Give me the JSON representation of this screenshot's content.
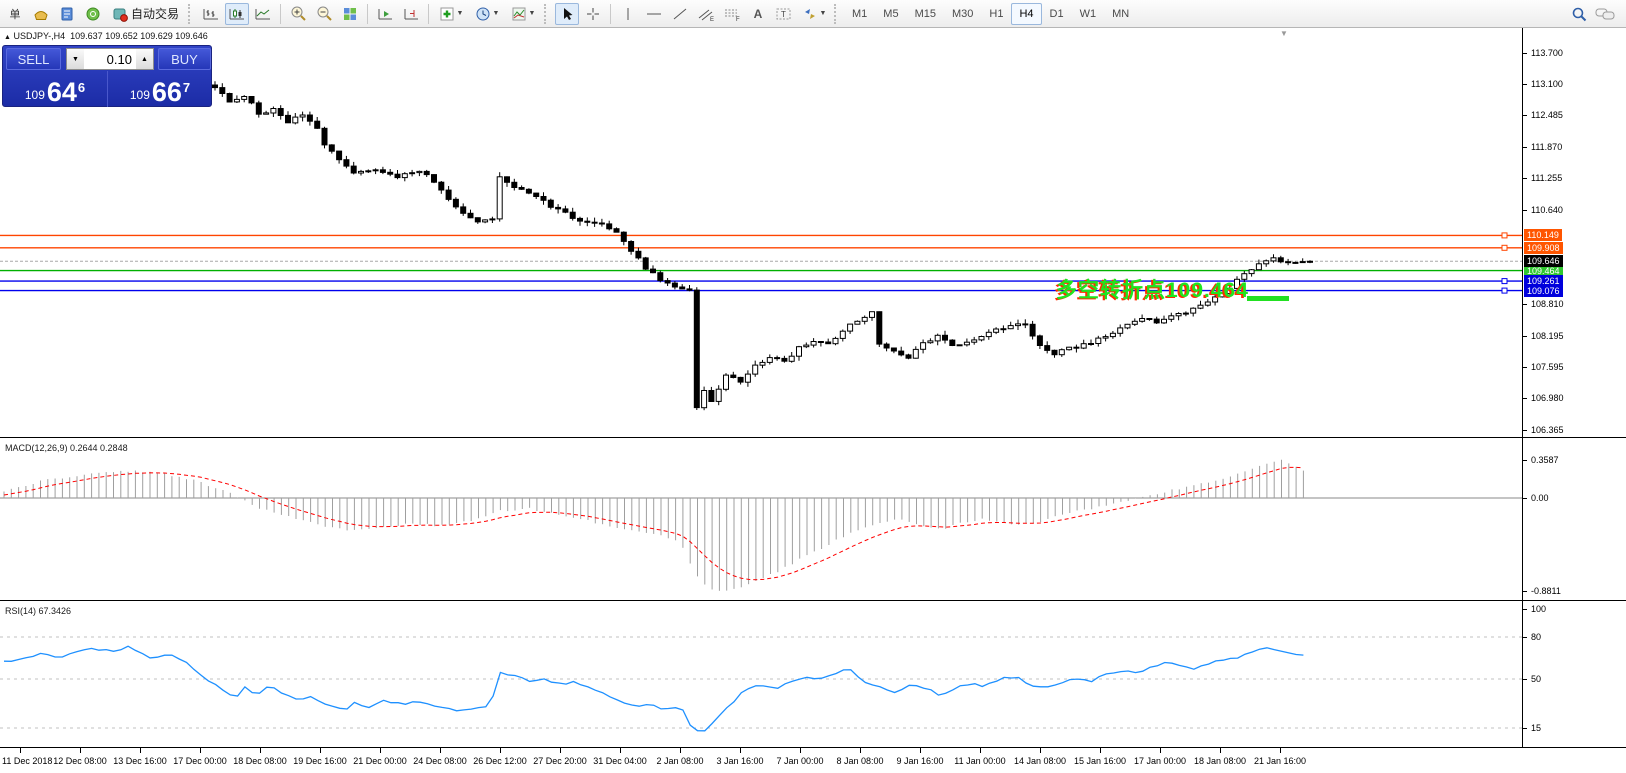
{
  "toolbar": {
    "new_order_label": "单",
    "auto_trading_label": "自动交易",
    "timeframes": [
      "M1",
      "M5",
      "M15",
      "M30",
      "H1",
      "H4",
      "D1",
      "W1",
      "MN"
    ],
    "active_timeframe": "H4"
  },
  "symbol_header": {
    "marker": "▲",
    "symbol": "USDJPY-,H4",
    "ohlc_text": "109.637 109.652 109.629 109.646"
  },
  "trade_panel": {
    "sell_label": "SELL",
    "buy_label": "BUY",
    "volume": "0.10",
    "spin_down": "▼",
    "spin_up": "▲",
    "sell_price_main": "109",
    "sell_price_big": "64",
    "sell_price_pip": "6",
    "buy_price_main": "109",
    "buy_price_big": "66",
    "buy_price_pip": "7"
  },
  "annotation": {
    "text": "多空转折点109.464",
    "color": "#1FE51F",
    "shadow_color": "#FF2D00",
    "underline_color": "#22E022",
    "price": 109.464
  },
  "shift_marker": "▼",
  "colors": {
    "bull_candle": "#ffffff",
    "bear_candle": "#000000",
    "candle_stroke": "#000000",
    "orange_line": "#FF4500",
    "orange_label_bg": "#FF5500",
    "green_line": "#00B000",
    "green_label_bg": "#2FC82F",
    "blue_line": "#0000EE",
    "blue_label_bg": "#0000DC",
    "current_price_line": "#A8A8A8",
    "current_price_label_bg": "#000000",
    "macd_histogram": "#9f9f9f",
    "macd_signal": "#FF0000",
    "rsi_line": "#1E90FF",
    "rsi_levels": "#c0c0c0"
  },
  "chart_data": [
    {
      "type": "candlestick",
      "title": "USDJPY-,H4",
      "symbol": "USDJPY-",
      "timeframe": "H4",
      "current_bar_ohlc": {
        "open": 109.637,
        "high": 109.652,
        "low": 109.629,
        "close": 109.646
      },
      "ylim": [
        106.23,
        114.18
      ],
      "y_ticks": [
        "113.700",
        "113.100",
        "112.485",
        "111.870",
        "111.255",
        "110.640",
        "108.810",
        "108.195",
        "107.595",
        "106.980",
        "106.365"
      ],
      "x_labels": [
        "11 Dec 2018",
        "12 Dec 08:00",
        "13 Dec 16:00",
        "17 Dec 00:00",
        "18 Dec 08:00",
        "19 Dec 16:00",
        "21 Dec 00:00",
        "24 Dec 08:00",
        "26 Dec 12:00",
        "27 Dec 20:00",
        "31 Dec 04:00",
        "2 Jan 08:00",
        "3 Jan 16:00",
        "7 Jan 00:00",
        "8 Jan 08:00",
        "9 Jan 16:00",
        "11 Jan 00:00",
        "14 Jan 08:00",
        "15 Jan 16:00",
        "17 Jan 00:00",
        "18 Jan 08:00",
        "21 Jan 16:00"
      ],
      "note": "price_path_keyframes are [bar_index, close_price] values read off the chart; candles are interpolated between them",
      "bars": {
        "start_x": 215,
        "spacing": 7.3,
        "count": 151
      },
      "price_path_keyframes": [
        [
          0,
          113.05
        ],
        [
          2,
          112.72
        ],
        [
          4,
          112.88
        ],
        [
          6,
          112.5
        ],
        [
          8,
          112.62
        ],
        [
          10,
          112.32
        ],
        [
          12,
          112.52
        ],
        [
          14,
          112.25
        ],
        [
          15,
          111.92
        ],
        [
          17,
          111.6
        ],
        [
          19,
          111.34
        ],
        [
          22,
          111.44
        ],
        [
          25,
          111.3
        ],
        [
          28,
          111.4
        ],
        [
          30,
          111.2
        ],
        [
          32,
          110.85
        ],
        [
          34,
          110.58
        ],
        [
          36,
          110.44
        ],
        [
          38,
          110.5
        ],
        [
          39,
          111.32
        ],
        [
          41,
          111.1
        ],
        [
          44,
          110.9
        ],
        [
          47,
          110.64
        ],
        [
          50,
          110.44
        ],
        [
          53,
          110.34
        ],
        [
          55,
          110.2
        ],
        [
          57,
          109.85
        ],
        [
          59,
          109.52
        ],
        [
          61,
          109.28
        ],
        [
          63,
          109.14
        ],
        [
          65,
          109.06
        ],
        [
          66,
          106.78
        ],
        [
          67,
          107.12
        ],
        [
          68,
          106.95
        ],
        [
          70,
          107.42
        ],
        [
          72,
          107.3
        ],
        [
          74,
          107.62
        ],
        [
          76,
          107.76
        ],
        [
          78,
          107.7
        ],
        [
          80,
          107.96
        ],
        [
          82,
          108.12
        ],
        [
          84,
          108.04
        ],
        [
          86,
          108.3
        ],
        [
          88,
          108.5
        ],
        [
          90,
          108.68
        ],
        [
          91,
          108.06
        ],
        [
          93,
          107.88
        ],
        [
          95,
          107.78
        ],
        [
          97,
          108.06
        ],
        [
          99,
          108.18
        ],
        [
          101,
          107.98
        ],
        [
          103,
          108.08
        ],
        [
          105,
          108.18
        ],
        [
          107,
          108.3
        ],
        [
          109,
          108.38
        ],
        [
          111,
          108.42
        ],
        [
          113,
          108.02
        ],
        [
          115,
          107.86
        ],
        [
          117,
          107.94
        ],
        [
          119,
          108.04
        ],
        [
          121,
          108.12
        ],
        [
          123,
          108.24
        ],
        [
          125,
          108.4
        ],
        [
          127,
          108.52
        ],
        [
          129,
          108.46
        ],
        [
          131,
          108.6
        ],
        [
          133,
          108.66
        ],
        [
          135,
          108.78
        ],
        [
          137,
          108.92
        ],
        [
          139,
          109.15
        ],
        [
          141,
          109.4
        ],
        [
          143,
          109.62
        ],
        [
          145,
          109.7
        ],
        [
          147,
          109.6
        ],
        [
          149,
          109.64
        ],
        [
          150,
          109.646
        ]
      ],
      "hlines": [
        {
          "price": 110.149,
          "label": "110.149",
          "color": "#FF4500",
          "label_bg": "#FF5500",
          "handle": true
        },
        {
          "price": 109.908,
          "label": "109.908",
          "color": "#FF4500",
          "label_bg": "#FF5500",
          "handle": true
        },
        {
          "price": 109.464,
          "label": "109.464",
          "color": "#00B000",
          "label_bg": "#2FC82F",
          "handle": false
        },
        {
          "price": 109.261,
          "label": "109.261",
          "color": "#0000EE",
          "label_bg": "#0000DC",
          "handle": true
        },
        {
          "price": 109.076,
          "label": "109.076",
          "color": "#0000EE",
          "label_bg": "#0000DC",
          "handle": true
        }
      ],
      "current_price": {
        "value": 109.646,
        "label": "109.646"
      }
    },
    {
      "type": "macd",
      "title": "MACD(12,26,9)",
      "header_text": "MACD(12,26,9) 0.2644 0.2848",
      "main_value": 0.2644,
      "signal_value": 0.2848,
      "ylim": [
        -0.963,
        0.548
      ],
      "y_ticks": [
        "0.3587",
        "0.00",
        "-0.8811"
      ],
      "y_tick_values": [
        0.3587,
        0.0,
        -0.8811
      ],
      "note": "histogram_keyframes are [x_px, value] read off the pane; thin gray bars, red dashed signal",
      "histogram_keyframes": [
        [
          4,
          0.06
        ],
        [
          40,
          0.16
        ],
        [
          80,
          0.22
        ],
        [
          120,
          0.26
        ],
        [
          160,
          0.24
        ],
        [
          200,
          0.15
        ],
        [
          230,
          0.05
        ],
        [
          260,
          -0.1
        ],
        [
          290,
          -0.18
        ],
        [
          320,
          -0.26
        ],
        [
          350,
          -0.3
        ],
        [
          380,
          -0.28
        ],
        [
          410,
          -0.24
        ],
        [
          440,
          -0.26
        ],
        [
          470,
          -0.22
        ],
        [
          500,
          -0.12
        ],
        [
          530,
          -0.1
        ],
        [
          560,
          -0.16
        ],
        [
          590,
          -0.22
        ],
        [
          620,
          -0.28
        ],
        [
          650,
          -0.34
        ],
        [
          680,
          -0.4
        ],
        [
          695,
          -0.72
        ],
        [
          710,
          -0.86
        ],
        [
          725,
          -0.88
        ],
        [
          740,
          -0.84
        ],
        [
          760,
          -0.78
        ],
        [
          780,
          -0.68
        ],
        [
          800,
          -0.58
        ],
        [
          820,
          -0.48
        ],
        [
          840,
          -0.38
        ],
        [
          860,
          -0.3
        ],
        [
          880,
          -0.24
        ],
        [
          900,
          -0.2
        ],
        [
          920,
          -0.26
        ],
        [
          940,
          -0.3
        ],
        [
          960,
          -0.24
        ],
        [
          980,
          -0.2
        ],
        [
          1000,
          -0.22
        ],
        [
          1020,
          -0.26
        ],
        [
          1040,
          -0.22
        ],
        [
          1060,
          -0.16
        ],
        [
          1080,
          -0.12
        ],
        [
          1100,
          -0.08
        ],
        [
          1120,
          -0.04
        ],
        [
          1140,
          0.0
        ],
        [
          1160,
          0.05
        ],
        [
          1180,
          0.09
        ],
        [
          1200,
          0.13
        ],
        [
          1220,
          0.18
        ],
        [
          1240,
          0.24
        ],
        [
          1255,
          0.29
        ],
        [
          1270,
          0.33
        ],
        [
          1280,
          0.3587
        ],
        [
          1292,
          0.31
        ],
        [
          1304,
          0.2644
        ]
      ]
    },
    {
      "type": "rsi",
      "title": "RSI(14)",
      "header_text": "RSI(14) 67.3426",
      "value": 67.3426,
      "ylim": [
        1.4,
        104.3
      ],
      "levels": [
        15,
        50,
        80
      ],
      "y_ticks": [
        "100",
        "80",
        "50",
        "15"
      ],
      "y_tick_values": [
        100,
        80,
        50,
        15
      ],
      "note": "keyframes are [x_px, rsi_value] read off the pane",
      "keyframes": [
        [
          4,
          62
        ],
        [
          40,
          68
        ],
        [
          60,
          65
        ],
        [
          90,
          72
        ],
        [
          110,
          70
        ],
        [
          130,
          73
        ],
        [
          150,
          65
        ],
        [
          170,
          68
        ],
        [
          190,
          60
        ],
        [
          210,
          48
        ],
        [
          225,
          42
        ],
        [
          235,
          36
        ],
        [
          245,
          44
        ],
        [
          255,
          38
        ],
        [
          270,
          45
        ],
        [
          280,
          40
        ],
        [
          300,
          34
        ],
        [
          310,
          38
        ],
        [
          330,
          31
        ],
        [
          345,
          28
        ],
        [
          355,
          33
        ],
        [
          370,
          30
        ],
        [
          385,
          35
        ],
        [
          400,
          32
        ],
        [
          420,
          34
        ],
        [
          440,
          30
        ],
        [
          455,
          27
        ],
        [
          470,
          29
        ],
        [
          490,
          31
        ],
        [
          500,
          55
        ],
        [
          515,
          52
        ],
        [
          530,
          48
        ],
        [
          545,
          50
        ],
        [
          560,
          46
        ],
        [
          575,
          48
        ],
        [
          590,
          44
        ],
        [
          605,
          40
        ],
        [
          620,
          34
        ],
        [
          635,
          30
        ],
        [
          650,
          32
        ],
        [
          665,
          28
        ],
        [
          680,
          31
        ],
        [
          693,
          14
        ],
        [
          705,
          13
        ],
        [
          715,
          20
        ],
        [
          725,
          28
        ],
        [
          735,
          35
        ],
        [
          745,
          42
        ],
        [
          760,
          46
        ],
        [
          775,
          43
        ],
        [
          790,
          48
        ],
        [
          805,
          52
        ],
        [
          820,
          50
        ],
        [
          835,
          54
        ],
        [
          850,
          57
        ],
        [
          865,
          48
        ],
        [
          880,
          44
        ],
        [
          895,
          41
        ],
        [
          910,
          46
        ],
        [
          925,
          44
        ],
        [
          940,
          38
        ],
        [
          955,
          43
        ],
        [
          970,
          47
        ],
        [
          985,
          45
        ],
        [
          1000,
          50
        ],
        [
          1015,
          52
        ],
        [
          1030,
          46
        ],
        [
          1045,
          44
        ],
        [
          1060,
          47
        ],
        [
          1075,
          50
        ],
        [
          1090,
          48
        ],
        [
          1105,
          53
        ],
        [
          1120,
          56
        ],
        [
          1135,
          54
        ],
        [
          1150,
          58
        ],
        [
          1165,
          62
        ],
        [
          1180,
          60
        ],
        [
          1195,
          57
        ],
        [
          1210,
          61
        ],
        [
          1225,
          64
        ],
        [
          1240,
          66
        ],
        [
          1255,
          70
        ],
        [
          1270,
          72
        ],
        [
          1285,
          69
        ],
        [
          1300,
          67.3
        ]
      ]
    }
  ],
  "time_axis": {
    "first_tick_x": 20,
    "spacing": 60
  }
}
